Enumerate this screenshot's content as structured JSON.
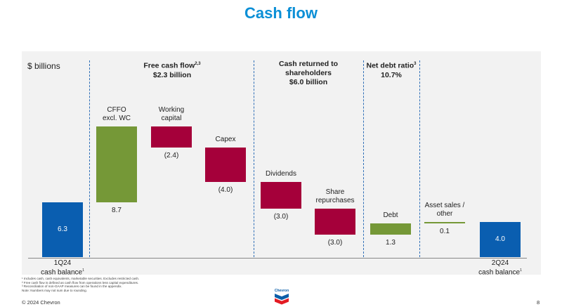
{
  "page": {
    "title": "Cash flow",
    "unit": "$ billions",
    "notes": [
      "¹ Includes cash, cash equivalents, marketable securities. Excludes restricted cash.",
      "² Free cash flow is defined as cash flow from operations less capital expenditures.",
      "³ Reconciliation of non-GAAP measures can be found in the appendix.",
      "Note: Numbers may not sum due to rounding."
    ],
    "copyright": "© 2024 Chevron",
    "page_number": "8",
    "logo_text": "Chevron"
  },
  "headers": {
    "fcf": {
      "title": "Free cash flow",
      "sup": "2,3",
      "value": "$2.3 billion"
    },
    "returned": {
      "title": "Cash returned to shareholders",
      "value": "$6.0 billion"
    },
    "net_debt": {
      "title": "Net debt ratio",
      "sup": "3",
      "value": "10.7%"
    }
  },
  "chart_data": {
    "type": "bar",
    "subtype": "waterfall",
    "ylabel": "$ billions",
    "grid": false,
    "colors": {
      "balance": "#0a5eb0",
      "increase": "#759837",
      "decrease": "#a5003a"
    },
    "categories": [
      "1Q24 cash balance",
      "CFFO excl. WC",
      "Working capital",
      "Capex",
      "Dividends",
      "Share repurchases",
      "Debt",
      "Asset sales / other",
      "2Q24 cash balance"
    ],
    "values": [
      6.3,
      8.7,
      -2.4,
      -4.0,
      -3.0,
      -3.0,
      1.3,
      0.1,
      4.0
    ],
    "value_labels": [
      "6.3",
      "8.7",
      "(2.4)",
      "(4.0)",
      "(3.0)",
      "(3.0)",
      "1.3",
      "0.1",
      "4.0"
    ],
    "bars": [
      {
        "label": "1Q24",
        "label2": "cash balance",
        "sup": "1",
        "kind": "balance"
      },
      {
        "label": "CFFO",
        "label2": "excl. WC",
        "kind": "increase"
      },
      {
        "label": "Working",
        "label2": "capital",
        "kind": "decrease"
      },
      {
        "label": "Capex",
        "label2": "",
        "kind": "decrease"
      },
      {
        "label": "Dividends",
        "label2": "",
        "kind": "decrease"
      },
      {
        "label": "Share",
        "label2": "repurchases",
        "kind": "decrease"
      },
      {
        "label": "Debt",
        "label2": "",
        "kind": "increase"
      },
      {
        "label": "Asset sales /",
        "label2": "other",
        "kind": "increase"
      },
      {
        "label": "2Q24",
        "label2": "cash balance",
        "sup": "1",
        "kind": "balance"
      }
    ]
  }
}
